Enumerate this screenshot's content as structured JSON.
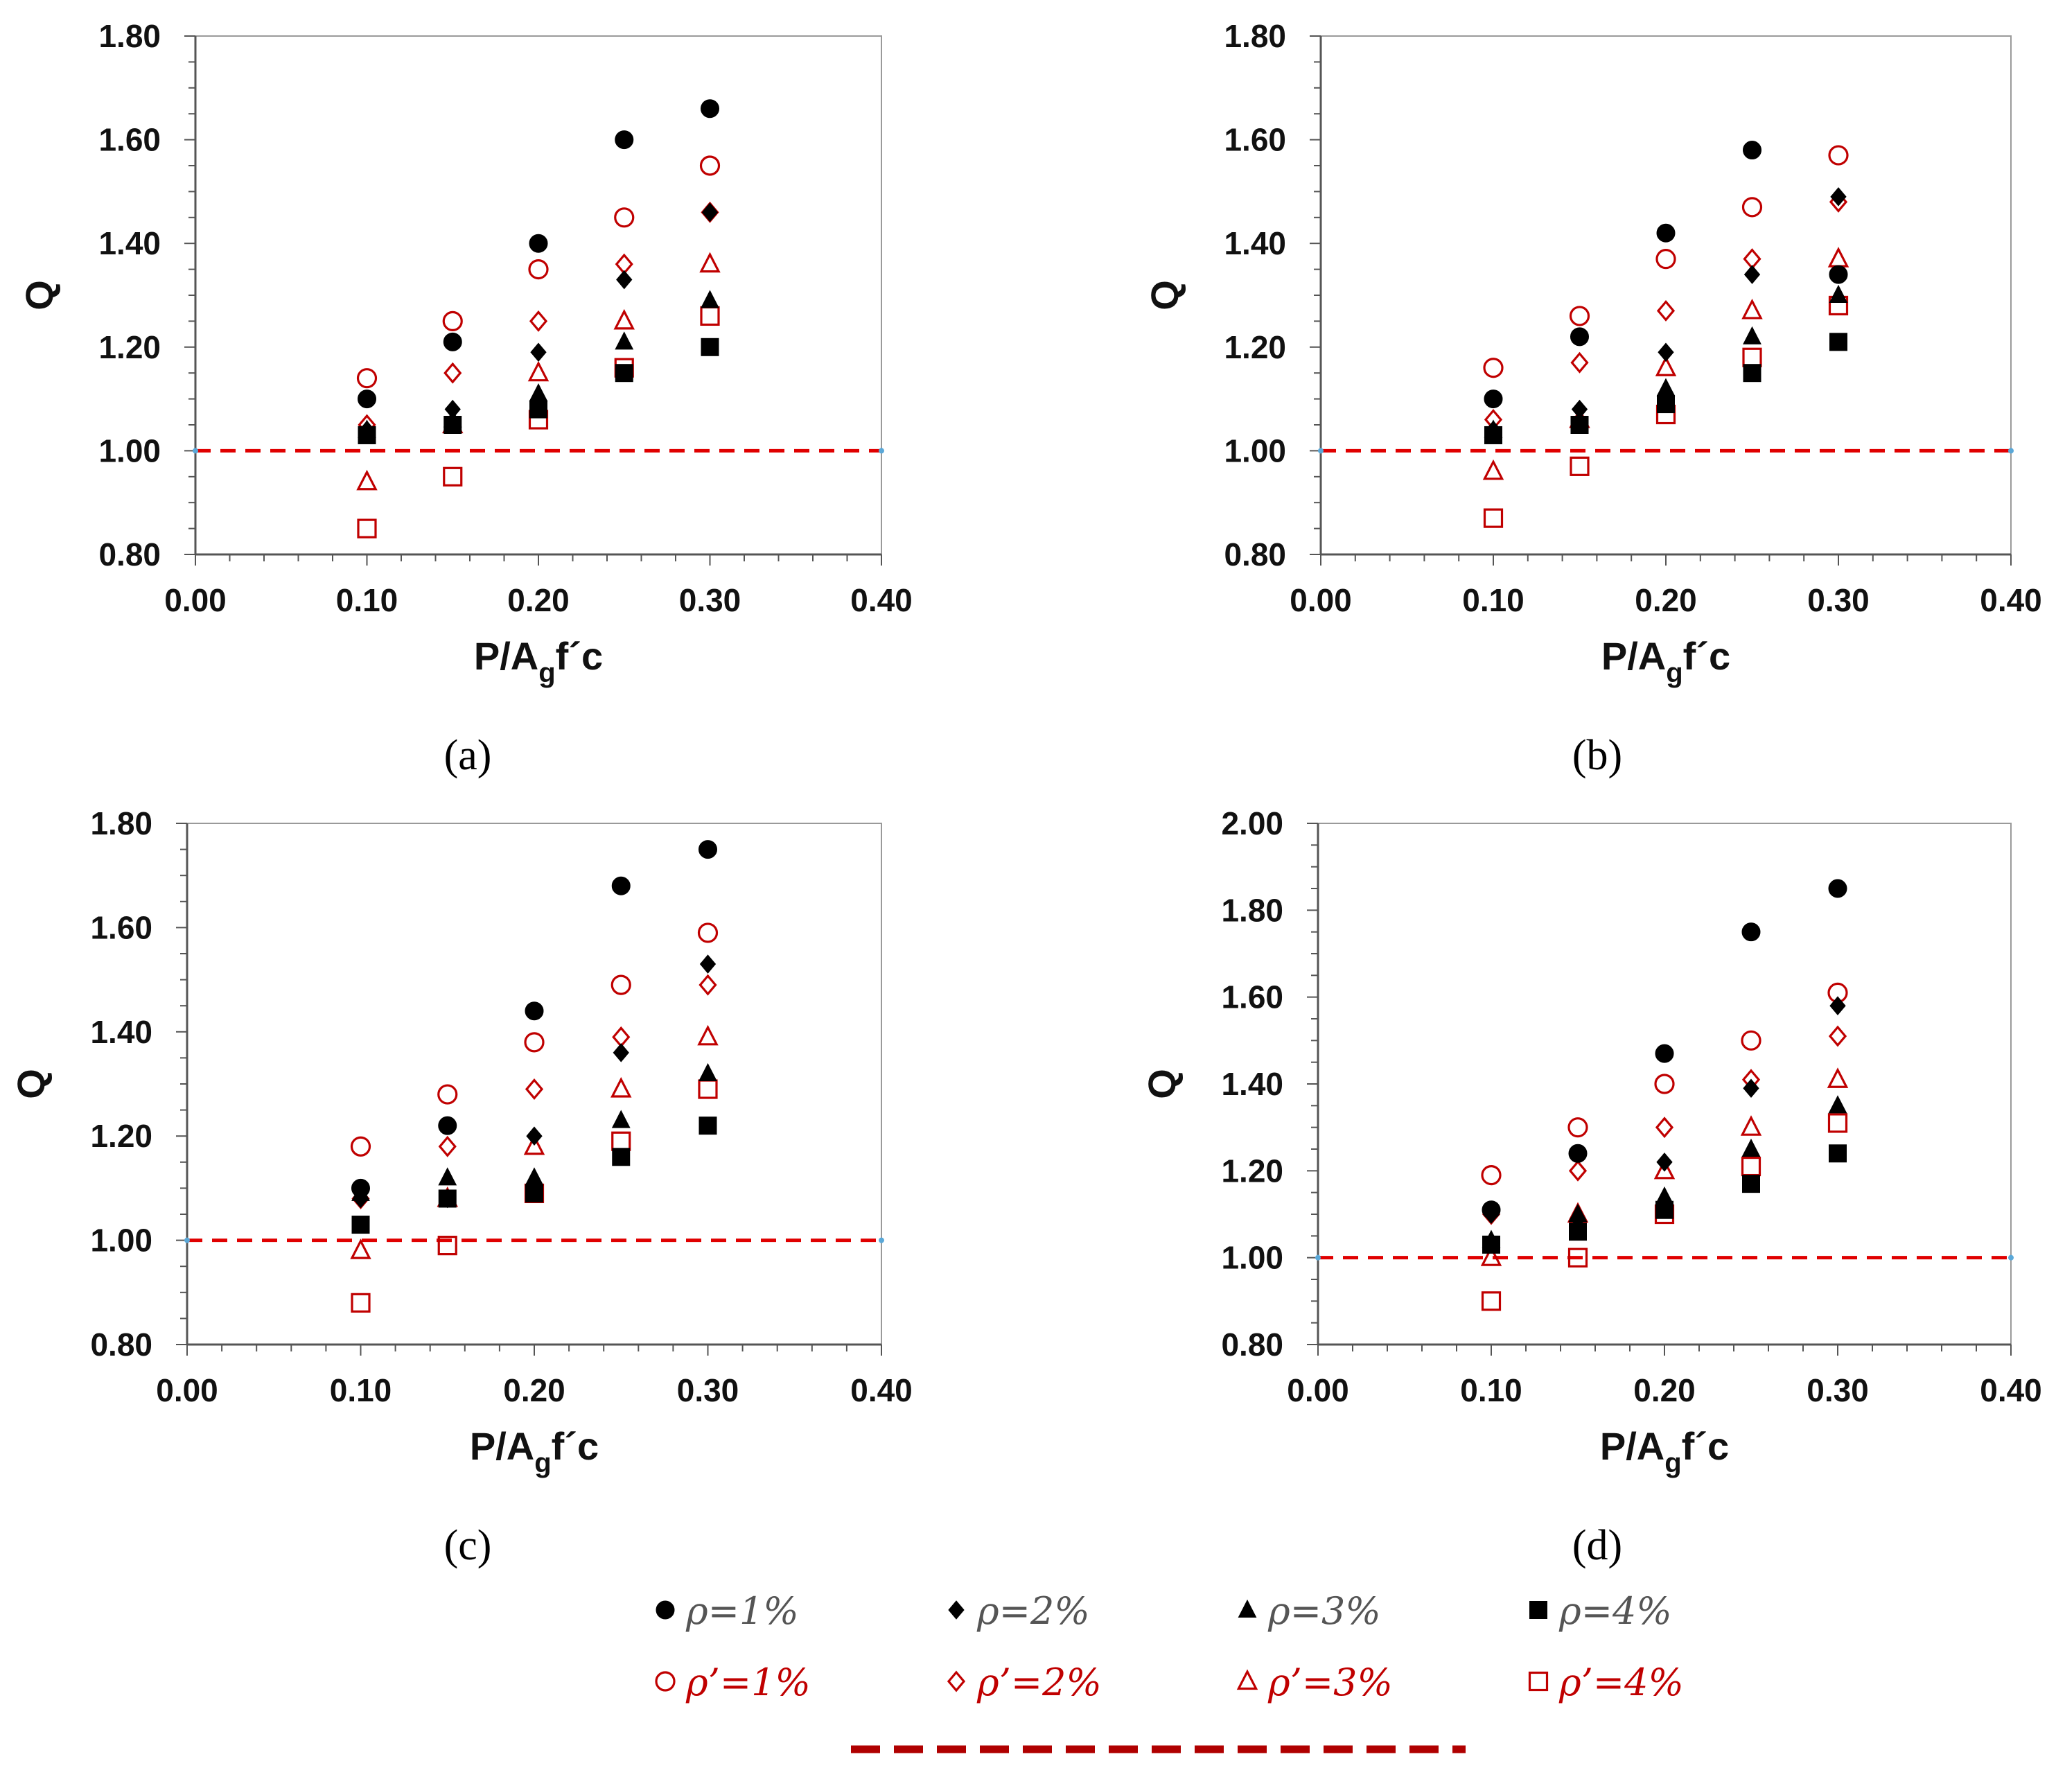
{
  "chart_data": [
    {
      "panel": "a",
      "caption": "(a)",
      "type": "scatter",
      "xlabel": "P/A",
      "xlabel_sub": "g",
      "xlabel_tail": "f´c",
      "ylabel": "Q",
      "xlim": [
        0.0,
        0.4
      ],
      "ylim": [
        0.8,
        1.8
      ],
      "xticks": [
        "0.00",
        "0.10",
        "0.20",
        "0.30",
        "0.40"
      ],
      "yticks": [
        "0.80",
        "1.00",
        "1.20",
        "1.40",
        "1.60",
        "1.80"
      ],
      "reference_line": 1.0,
      "x": [
        0.1,
        0.15,
        0.2,
        0.25,
        0.3
      ],
      "series": [
        {
          "name": "ρ=1%",
          "marker": "circle",
          "filled": true,
          "values": [
            1.1,
            1.21,
            1.4,
            1.6,
            1.66
          ]
        },
        {
          "name": "ρ=2%",
          "marker": "diamond",
          "filled": true,
          "values": [
            1.04,
            1.08,
            1.19,
            1.33,
            1.46
          ]
        },
        {
          "name": "ρ=3%",
          "marker": "triangle",
          "filled": true,
          "values": [
            1.04,
            1.06,
            1.11,
            1.21,
            1.29
          ]
        },
        {
          "name": "ρ=4%",
          "marker": "square",
          "filled": true,
          "values": [
            1.03,
            1.05,
            1.08,
            1.15,
            1.2
          ]
        },
        {
          "name": "ρ'=1%",
          "marker": "circle",
          "filled": false,
          "values": [
            1.14,
            1.25,
            1.35,
            1.45,
            1.55
          ]
        },
        {
          "name": "ρ'=2%",
          "marker": "diamond",
          "filled": false,
          "values": [
            1.05,
            1.15,
            1.25,
            1.36,
            1.46
          ]
        },
        {
          "name": "ρ'=3%",
          "marker": "triangle",
          "filled": false,
          "values": [
            0.94,
            1.05,
            1.15,
            1.25,
            1.36
          ]
        },
        {
          "name": "ρ'=4%",
          "marker": "square",
          "filled": false,
          "values": [
            0.85,
            0.95,
            1.06,
            1.16,
            1.26
          ]
        }
      ]
    },
    {
      "panel": "b",
      "caption": "(b)",
      "type": "scatter",
      "xlabel": "P/A",
      "xlabel_sub": "g",
      "xlabel_tail": "f´c",
      "ylabel": "Q",
      "xlim": [
        0.0,
        0.4
      ],
      "ylim": [
        0.8,
        1.8
      ],
      "xticks": [
        "0.00",
        "0.10",
        "0.20",
        "0.30",
        "0.40"
      ],
      "yticks": [
        "0.80",
        "1.00",
        "1.20",
        "1.40",
        "1.60",
        "1.80"
      ],
      "reference_line": 1.0,
      "x": [
        0.1,
        0.15,
        0.2,
        0.25,
        0.3
      ],
      "series": [
        {
          "name": "ρ=1%",
          "marker": "circle",
          "filled": true,
          "values": [
            1.1,
            1.22,
            1.42,
            1.58,
            1.34
          ]
        },
        {
          "name": "ρ=2%",
          "marker": "diamond",
          "filled": true,
          "values": [
            1.04,
            1.08,
            1.19,
            1.34,
            1.49
          ]
        },
        {
          "name": "ρ=3%",
          "marker": "triangle",
          "filled": true,
          "values": [
            1.04,
            1.06,
            1.12,
            1.22,
            1.3
          ]
        },
        {
          "name": "ρ=4%",
          "marker": "square",
          "filled": true,
          "values": [
            1.03,
            1.05,
            1.09,
            1.15,
            1.21
          ]
        },
        {
          "name": "ρ'=1%",
          "marker": "circle",
          "filled": false,
          "values": [
            1.16,
            1.26,
            1.37,
            1.47,
            1.57
          ]
        },
        {
          "name": "ρ'=2%",
          "marker": "diamond",
          "filled": false,
          "values": [
            1.06,
            1.17,
            1.27,
            1.37,
            1.48
          ]
        },
        {
          "name": "ρ'=3%",
          "marker": "triangle",
          "filled": false,
          "values": [
            0.96,
            1.06,
            1.16,
            1.27,
            1.37
          ]
        },
        {
          "name": "ρ'=4%",
          "marker": "square",
          "filled": false,
          "values": [
            0.87,
            0.97,
            1.07,
            1.18,
            1.28
          ]
        }
      ]
    },
    {
      "panel": "c",
      "caption": "(c)",
      "type": "scatter",
      "xlabel": "P/A",
      "xlabel_sub": "g",
      "xlabel_tail": "f´c",
      "ylabel": "Q",
      "xlim": [
        0.0,
        0.4
      ],
      "ylim": [
        0.8,
        1.8
      ],
      "xticks": [
        "0.00",
        "0.10",
        "0.20",
        "0.30",
        "0.40"
      ],
      "yticks": [
        "0.80",
        "1.00",
        "1.20",
        "1.40",
        "1.60",
        "1.80"
      ],
      "reference_line": 1.0,
      "x": [
        0.1,
        0.15,
        0.2,
        0.25,
        0.3
      ],
      "series": [
        {
          "name": "ρ=1%",
          "marker": "circle",
          "filled": true,
          "values": [
            1.1,
            1.22,
            1.44,
            1.68,
            1.75
          ]
        },
        {
          "name": "ρ=2%",
          "marker": "diamond",
          "filled": true,
          "values": [
            1.08,
            1.08,
            1.2,
            1.36,
            1.53
          ]
        },
        {
          "name": "ρ=3%",
          "marker": "triangle",
          "filled": true,
          "values": [
            1.09,
            1.12,
            1.12,
            1.23,
            1.32
          ]
        },
        {
          "name": "ρ=4%",
          "marker": "square",
          "filled": true,
          "values": [
            1.03,
            1.08,
            1.09,
            1.16,
            1.22
          ]
        },
        {
          "name": "ρ'=1%",
          "marker": "circle",
          "filled": false,
          "values": [
            1.18,
            1.28,
            1.38,
            1.49,
            1.59
          ]
        },
        {
          "name": "ρ'=2%",
          "marker": "diamond",
          "filled": false,
          "values": [
            1.08,
            1.18,
            1.29,
            1.39,
            1.49
          ]
        },
        {
          "name": "ρ'=3%",
          "marker": "triangle",
          "filled": false,
          "values": [
            0.98,
            1.08,
            1.18,
            1.29,
            1.39
          ]
        },
        {
          "name": "ρ'=4%",
          "marker": "square",
          "filled": false,
          "values": [
            0.88,
            0.99,
            1.09,
            1.19,
            1.29
          ]
        }
      ]
    },
    {
      "panel": "d",
      "caption": "(d)",
      "type": "scatter",
      "xlabel": "P/A",
      "xlabel_sub": "g",
      "xlabel_tail": "f´c",
      "ylabel": "Q",
      "xlim": [
        0.0,
        0.4
      ],
      "ylim": [
        0.8,
        2.0
      ],
      "xticks": [
        "0.00",
        "0.10",
        "0.20",
        "0.30",
        "0.40"
      ],
      "yticks": [
        "0.80",
        "1.00",
        "1.20",
        "1.40",
        "1.60",
        "1.80",
        "2.00"
      ],
      "reference_line": 1.0,
      "x": [
        0.1,
        0.15,
        0.2,
        0.25,
        0.3
      ],
      "series": [
        {
          "name": "ρ=1%",
          "marker": "circle",
          "filled": true,
          "values": [
            1.11,
            1.24,
            1.47,
            1.75,
            1.85
          ]
        },
        {
          "name": "ρ=2%",
          "marker": "diamond",
          "filled": true,
          "values": [
            1.1,
            1.09,
            1.22,
            1.39,
            1.58
          ]
        },
        {
          "name": "ρ=3%",
          "marker": "triangle",
          "filled": true,
          "values": [
            1.04,
            1.1,
            1.14,
            1.25,
            1.35
          ]
        },
        {
          "name": "ρ=4%",
          "marker": "square",
          "filled": true,
          "values": [
            1.03,
            1.06,
            1.11,
            1.17,
            1.24
          ]
        },
        {
          "name": "ρ'=1%",
          "marker": "circle",
          "filled": false,
          "values": [
            1.19,
            1.3,
            1.4,
            1.5,
            1.61
          ]
        },
        {
          "name": "ρ'=2%",
          "marker": "diamond",
          "filled": false,
          "values": [
            1.1,
            1.2,
            1.3,
            1.41,
            1.51
          ]
        },
        {
          "name": "ρ'=3%",
          "marker": "triangle",
          "filled": false,
          "values": [
            1.0,
            1.1,
            1.2,
            1.3,
            1.41
          ]
        },
        {
          "name": "ρ'=4%",
          "marker": "square",
          "filled": false,
          "values": [
            0.9,
            1.0,
            1.1,
            1.21,
            1.31
          ]
        }
      ]
    }
  ],
  "legend": {
    "entries": [
      {
        "label": "ρ=1%",
        "marker": "circle",
        "filled": true
      },
      {
        "label": "ρ=2%",
        "marker": "diamond",
        "filled": true
      },
      {
        "label": "ρ=3%",
        "marker": "triangle",
        "filled": true
      },
      {
        "label": "ρ=4%",
        "marker": "square",
        "filled": true
      },
      {
        "label": "ρ’=1%",
        "marker": "circle",
        "filled": false
      },
      {
        "label": "ρ’=2%",
        "marker": "diamond",
        "filled": false
      },
      {
        "label": "ρ’=3%",
        "marker": "triangle",
        "filled": false
      },
      {
        "label": "ρ’=4%",
        "marker": "square",
        "filled": false
      }
    ],
    "dashed_line_entry": true
  },
  "colors": {
    "filled_marker": "#000000",
    "hollow_marker": "#c00000",
    "reference_line": "#e00000",
    "legend_dash": "#b00000",
    "axis": "#777777"
  }
}
